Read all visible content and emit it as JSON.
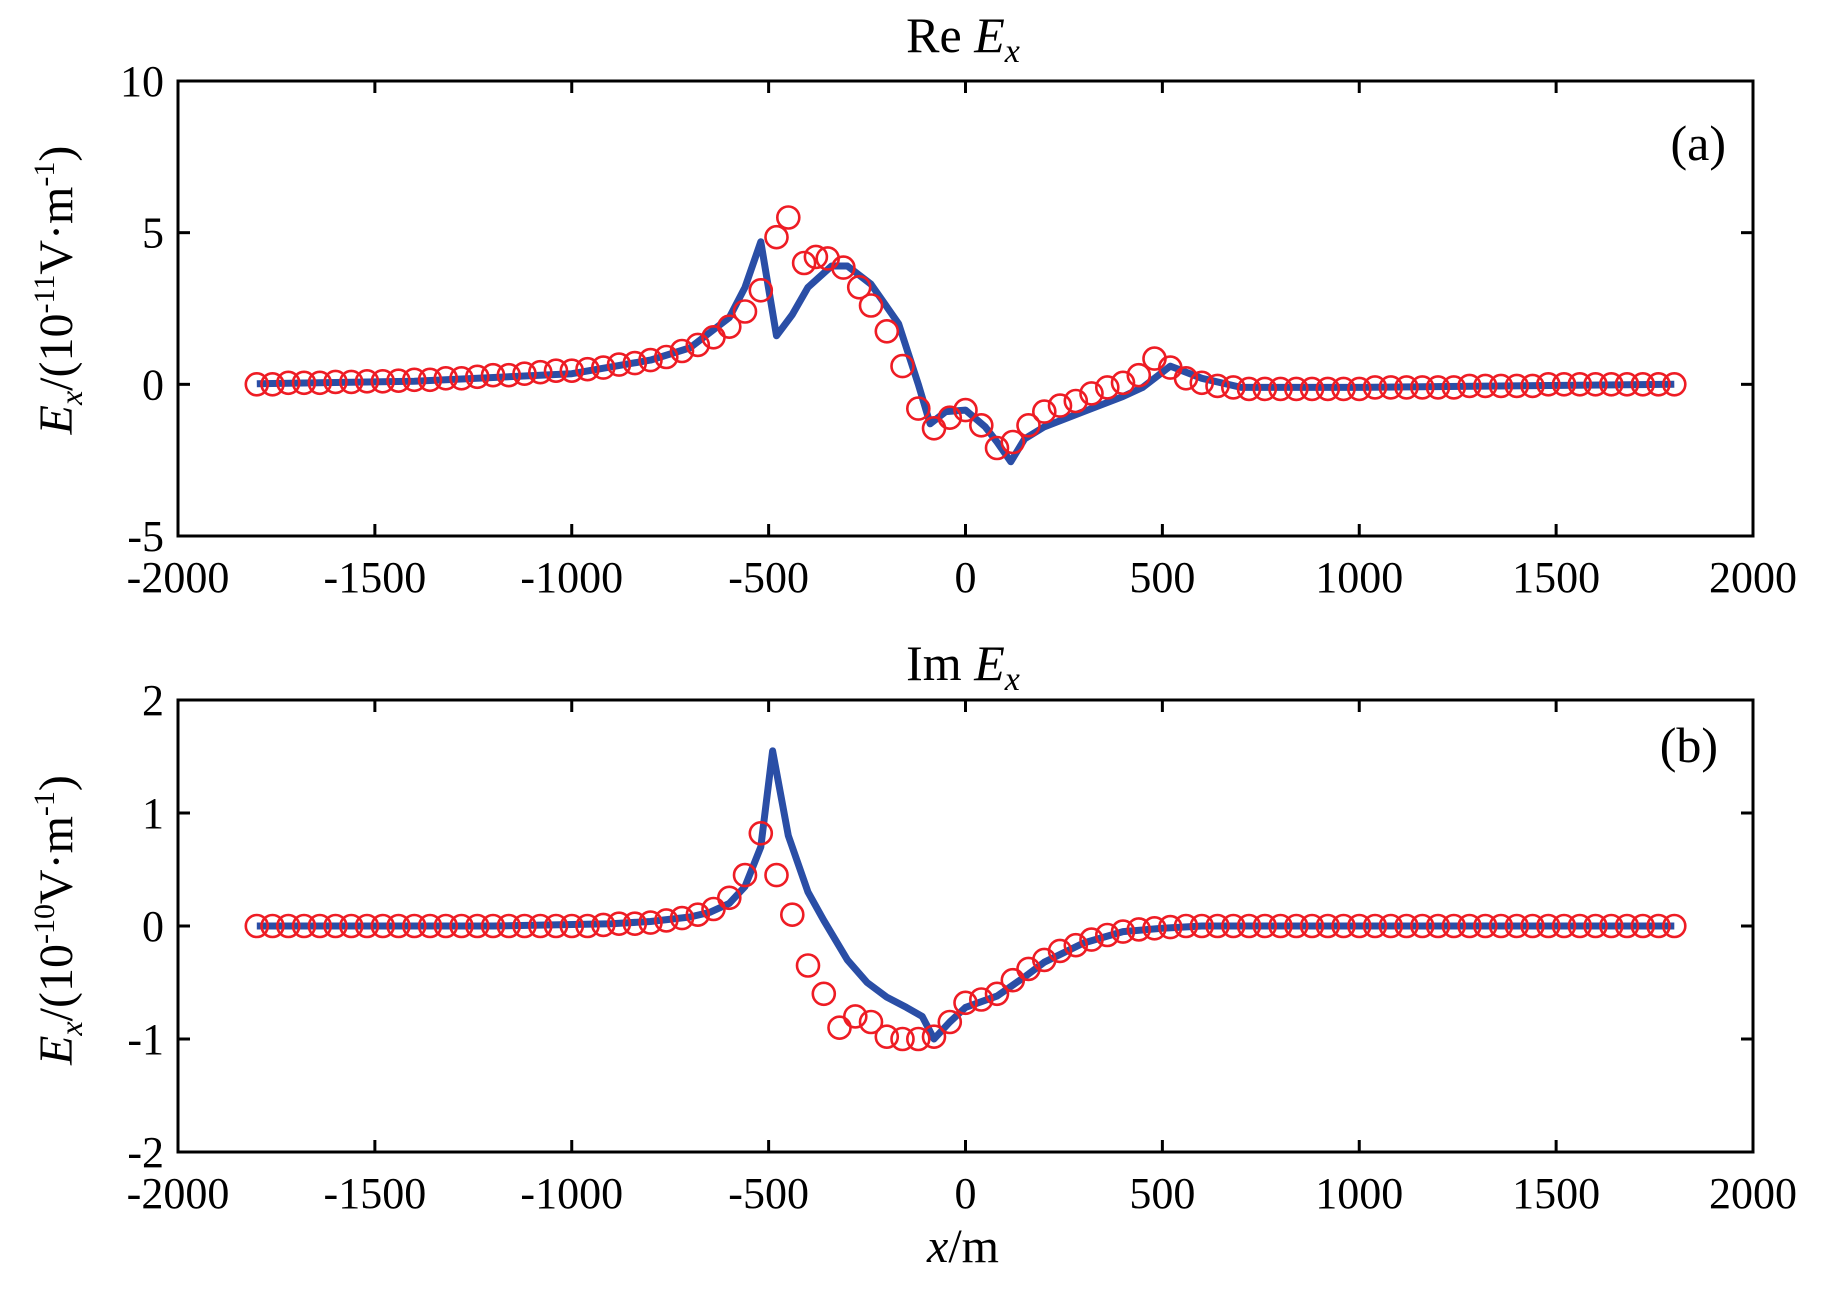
{
  "colors": {
    "line": "#2a4ea6",
    "marker": "#ee1c24",
    "axis": "#000000"
  },
  "xlabel": {
    "main": "x",
    "rest": "/m"
  },
  "chart_data": [
    {
      "type": "line",
      "panel": "a",
      "panel_tag": "(a)",
      "title": {
        "prefix": "Re ",
        "sym": "E",
        "sub": "x"
      },
      "ylabel": {
        "sym": "E",
        "sub": "x",
        "pre": "/(10",
        "exp": "-11",
        "post": "V·m",
        "exp2": "-1",
        "close": ")"
      },
      "xlim": [
        -2000,
        2000
      ],
      "ylim": [
        -5,
        10
      ],
      "xticks": [
        -2000,
        -1500,
        -1000,
        -500,
        0,
        500,
        1000,
        1500,
        2000
      ],
      "yticks": [
        -5,
        0,
        5,
        10
      ],
      "series": [
        {
          "name": "line",
          "style": "solid",
          "points": [
            [
              -1800,
              0.02
            ],
            [
              -1400,
              0.1
            ],
            [
              -1000,
              0.35
            ],
            [
              -800,
              0.8
            ],
            [
              -700,
              1.2
            ],
            [
              -600,
              2.2
            ],
            [
              -560,
              3.2
            ],
            [
              -520,
              4.7
            ],
            [
              -480,
              1.6
            ],
            [
              -440,
              2.3
            ],
            [
              -400,
              3.2
            ],
            [
              -340,
              3.9
            ],
            [
              -300,
              3.9
            ],
            [
              -240,
              3.3
            ],
            [
              -170,
              2.0
            ],
            [
              -120,
              0.0
            ],
            [
              -90,
              -1.3
            ],
            [
              -50,
              -0.9
            ],
            [
              0,
              -0.85
            ],
            [
              50,
              -1.4
            ],
            [
              80,
              -1.9
            ],
            [
              115,
              -2.55
            ],
            [
              150,
              -1.8
            ],
            [
              200,
              -1.4
            ],
            [
              300,
              -0.9
            ],
            [
              400,
              -0.4
            ],
            [
              450,
              -0.1
            ],
            [
              520,
              0.6
            ],
            [
              600,
              0.2
            ],
            [
              700,
              -0.1
            ],
            [
              1000,
              -0.1
            ],
            [
              1800,
              0.0
            ]
          ]
        },
        {
          "name": "markers",
          "style": "circle",
          "points": [
            [
              -1800,
              0.0
            ],
            [
              -1760,
              0.0
            ],
            [
              -1720,
              0.05
            ],
            [
              -1680,
              0.05
            ],
            [
              -1640,
              0.05
            ],
            [
              -1600,
              0.08
            ],
            [
              -1560,
              0.08
            ],
            [
              -1520,
              0.1
            ],
            [
              -1480,
              0.1
            ],
            [
              -1440,
              0.12
            ],
            [
              -1400,
              0.15
            ],
            [
              -1360,
              0.15
            ],
            [
              -1320,
              0.2
            ],
            [
              -1280,
              0.2
            ],
            [
              -1240,
              0.25
            ],
            [
              -1200,
              0.3
            ],
            [
              -1160,
              0.3
            ],
            [
              -1120,
              0.35
            ],
            [
              -1080,
              0.4
            ],
            [
              -1040,
              0.45
            ],
            [
              -1000,
              0.45
            ],
            [
              -960,
              0.5
            ],
            [
              -920,
              0.55
            ],
            [
              -880,
              0.65
            ],
            [
              -840,
              0.7
            ],
            [
              -800,
              0.8
            ],
            [
              -760,
              0.9
            ],
            [
              -720,
              1.1
            ],
            [
              -680,
              1.3
            ],
            [
              -640,
              1.55
            ],
            [
              -600,
              1.9
            ],
            [
              -560,
              2.4
            ],
            [
              -520,
              3.1
            ],
            [
              -480,
              4.85
            ],
            [
              -450,
              5.5
            ],
            [
              -410,
              4.0
            ],
            [
              -380,
              4.2
            ],
            [
              -350,
              4.15
            ],
            [
              -310,
              3.85
            ],
            [
              -270,
              3.2
            ],
            [
              -240,
              2.6
            ],
            [
              -200,
              1.75
            ],
            [
              -160,
              0.6
            ],
            [
              -120,
              -0.8
            ],
            [
              -80,
              -1.45
            ],
            [
              -40,
              -1.1
            ],
            [
              0,
              -0.85
            ],
            [
              40,
              -1.35
            ],
            [
              80,
              -2.1
            ],
            [
              120,
              -1.9
            ],
            [
              160,
              -1.35
            ],
            [
              200,
              -0.9
            ],
            [
              240,
              -0.7
            ],
            [
              280,
              -0.55
            ],
            [
              320,
              -0.3
            ],
            [
              360,
              -0.1
            ],
            [
              400,
              0.05
            ],
            [
              440,
              0.3
            ],
            [
              480,
              0.85
            ],
            [
              520,
              0.55
            ],
            [
              560,
              0.2
            ],
            [
              600,
              0.05
            ],
            [
              640,
              -0.05
            ],
            [
              680,
              -0.1
            ],
            [
              720,
              -0.15
            ],
            [
              760,
              -0.15
            ],
            [
              800,
              -0.15
            ],
            [
              840,
              -0.15
            ],
            [
              880,
              -0.15
            ],
            [
              920,
              -0.15
            ],
            [
              960,
              -0.15
            ],
            [
              1000,
              -0.15
            ],
            [
              1040,
              -0.1
            ],
            [
              1080,
              -0.1
            ],
            [
              1120,
              -0.1
            ],
            [
              1160,
              -0.1
            ],
            [
              1200,
              -0.1
            ],
            [
              1240,
              -0.1
            ],
            [
              1280,
              -0.05
            ],
            [
              1320,
              -0.05
            ],
            [
              1360,
              -0.05
            ],
            [
              1400,
              -0.05
            ],
            [
              1440,
              -0.05
            ],
            [
              1480,
              0.0
            ],
            [
              1520,
              0.0
            ],
            [
              1560,
              0.0
            ],
            [
              1600,
              0.0
            ],
            [
              1640,
              0.0
            ],
            [
              1680,
              0.0
            ],
            [
              1720,
              0.0
            ],
            [
              1760,
              0.0
            ],
            [
              1800,
              0.0
            ]
          ]
        }
      ]
    },
    {
      "type": "line",
      "panel": "b",
      "panel_tag": "(b)",
      "title": {
        "prefix": "Im ",
        "sym": "E",
        "sub": "x"
      },
      "ylabel": {
        "sym": "E",
        "sub": "x",
        "pre": "/(10",
        "exp": "-10",
        "post": "V·m",
        "exp2": "-1",
        "close": ")"
      },
      "xlim": [
        -2000,
        2000
      ],
      "ylim": [
        -2,
        2
      ],
      "xticks": [
        -2000,
        -1500,
        -1000,
        -500,
        0,
        500,
        1000,
        1500,
        2000
      ],
      "yticks": [
        -2,
        -1,
        0,
        1,
        2
      ],
      "series": [
        {
          "name": "line",
          "style": "solid",
          "points": [
            [
              -1800,
              0.0
            ],
            [
              -1200,
              0.0
            ],
            [
              -900,
              0.02
            ],
            [
              -800,
              0.04
            ],
            [
              -700,
              0.08
            ],
            [
              -650,
              0.12
            ],
            [
              -600,
              0.2
            ],
            [
              -560,
              0.35
            ],
            [
              -520,
              0.7
            ],
            [
              -490,
              1.55
            ],
            [
              -450,
              0.8
            ],
            [
              -400,
              0.3
            ],
            [
              -360,
              0.05
            ],
            [
              -300,
              -0.3
            ],
            [
              -250,
              -0.5
            ],
            [
              -200,
              -0.63
            ],
            [
              -150,
              -0.72
            ],
            [
              -110,
              -0.8
            ],
            [
              -80,
              -1.0
            ],
            [
              -40,
              -0.85
            ],
            [
              0,
              -0.72
            ],
            [
              40,
              -0.67
            ],
            [
              80,
              -0.62
            ],
            [
              150,
              -0.45
            ],
            [
              200,
              -0.32
            ],
            [
              300,
              -0.15
            ],
            [
              400,
              -0.05
            ],
            [
              500,
              -0.02
            ],
            [
              600,
              0.0
            ],
            [
              1800,
              0.0
            ]
          ]
        },
        {
          "name": "markers",
          "style": "circle",
          "points": [
            [
              -1800,
              0.0
            ],
            [
              -1760,
              0.0
            ],
            [
              -1720,
              0.0
            ],
            [
              -1680,
              0.0
            ],
            [
              -1640,
              0.0
            ],
            [
              -1600,
              0.0
            ],
            [
              -1560,
              0.0
            ],
            [
              -1520,
              0.0
            ],
            [
              -1480,
              0.0
            ],
            [
              -1440,
              0.0
            ],
            [
              -1400,
              0.0
            ],
            [
              -1360,
              0.0
            ],
            [
              -1320,
              0.0
            ],
            [
              -1280,
              0.0
            ],
            [
              -1240,
              0.0
            ],
            [
              -1200,
              0.0
            ],
            [
              -1160,
              0.0
            ],
            [
              -1120,
              0.0
            ],
            [
              -1080,
              0.0
            ],
            [
              -1040,
              0.0
            ],
            [
              -1000,
              0.0
            ],
            [
              -960,
              0.0
            ],
            [
              -920,
              0.01
            ],
            [
              -880,
              0.02
            ],
            [
              -840,
              0.02
            ],
            [
              -800,
              0.03
            ],
            [
              -760,
              0.05
            ],
            [
              -720,
              0.07
            ],
            [
              -680,
              0.1
            ],
            [
              -640,
              0.15
            ],
            [
              -600,
              0.25
            ],
            [
              -560,
              0.45
            ],
            [
              -520,
              0.82
            ],
            [
              -480,
              0.45
            ],
            [
              -440,
              0.1
            ],
            [
              -400,
              -0.35
            ],
            [
              -360,
              -0.6
            ],
            [
              -320,
              -0.9
            ],
            [
              -280,
              -0.8
            ],
            [
              -240,
              -0.85
            ],
            [
              -200,
              -0.98
            ],
            [
              -160,
              -1.0
            ],
            [
              -120,
              -1.0
            ],
            [
              -80,
              -0.98
            ],
            [
              -40,
              -0.85
            ],
            [
              0,
              -0.68
            ],
            [
              40,
              -0.65
            ],
            [
              80,
              -0.6
            ],
            [
              120,
              -0.48
            ],
            [
              160,
              -0.38
            ],
            [
              200,
              -0.3
            ],
            [
              240,
              -0.22
            ],
            [
              280,
              -0.17
            ],
            [
              320,
              -0.12
            ],
            [
              360,
              -0.08
            ],
            [
              400,
              -0.05
            ],
            [
              440,
              -0.03
            ],
            [
              480,
              -0.02
            ],
            [
              520,
              -0.01
            ],
            [
              560,
              0.0
            ],
            [
              600,
              0.0
            ],
            [
              640,
              0.0
            ],
            [
              680,
              0.0
            ],
            [
              720,
              0.0
            ],
            [
              760,
              0.0
            ],
            [
              800,
              0.0
            ],
            [
              840,
              0.0
            ],
            [
              880,
              0.0
            ],
            [
              920,
              0.0
            ],
            [
              960,
              0.0
            ],
            [
              1000,
              0.0
            ],
            [
              1040,
              0.0
            ],
            [
              1080,
              0.0
            ],
            [
              1120,
              0.0
            ],
            [
              1160,
              0.0
            ],
            [
              1200,
              0.0
            ],
            [
              1240,
              0.0
            ],
            [
              1280,
              0.0
            ],
            [
              1320,
              0.0
            ],
            [
              1360,
              0.0
            ],
            [
              1400,
              0.0
            ],
            [
              1440,
              0.0
            ],
            [
              1480,
              0.0
            ],
            [
              1520,
              0.0
            ],
            [
              1560,
              0.0
            ],
            [
              1600,
              0.0
            ],
            [
              1640,
              0.0
            ],
            [
              1680,
              0.0
            ],
            [
              1720,
              0.0
            ],
            [
              1760,
              0.0
            ],
            [
              1800,
              0.0
            ]
          ]
        }
      ]
    }
  ]
}
